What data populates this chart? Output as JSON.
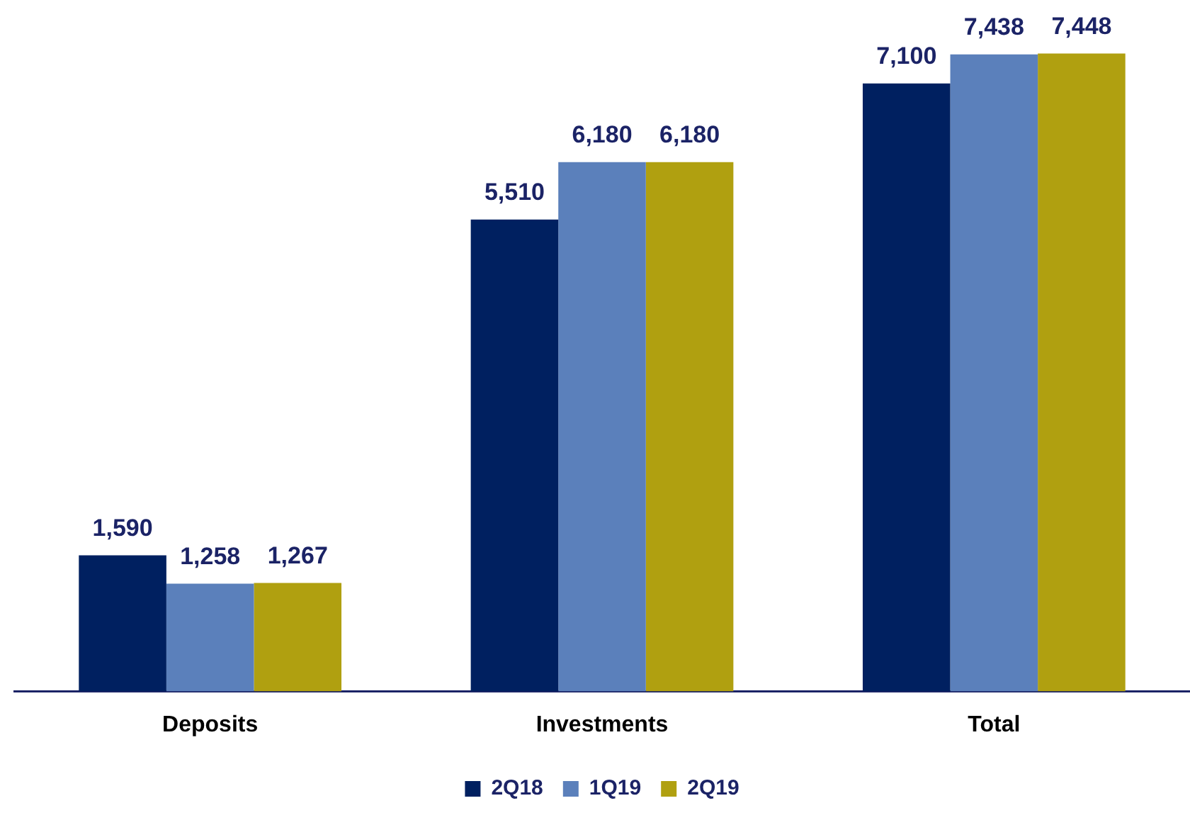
{
  "chart_data": {
    "type": "bar",
    "categories": [
      "Deposits",
      "Investments",
      "Total"
    ],
    "series": [
      {
        "name": "2Q18",
        "color": "#002060",
        "values": [
          1590,
          5510,
          7100
        ],
        "value_labels": [
          "1,590",
          "5,510",
          "7,100"
        ]
      },
      {
        "name": "1Q19",
        "color": "#5b80bb",
        "values": [
          1258,
          6180,
          7438
        ],
        "value_labels": [
          "1,258",
          "6,180",
          "7,438"
        ]
      },
      {
        "name": "2Q19",
        "color": "#b0a010",
        "values": [
          1267,
          6180,
          7448
        ],
        "value_labels": [
          "1,267",
          "6,180",
          "7,448"
        ]
      }
    ],
    "legend": "bottom"
  }
}
